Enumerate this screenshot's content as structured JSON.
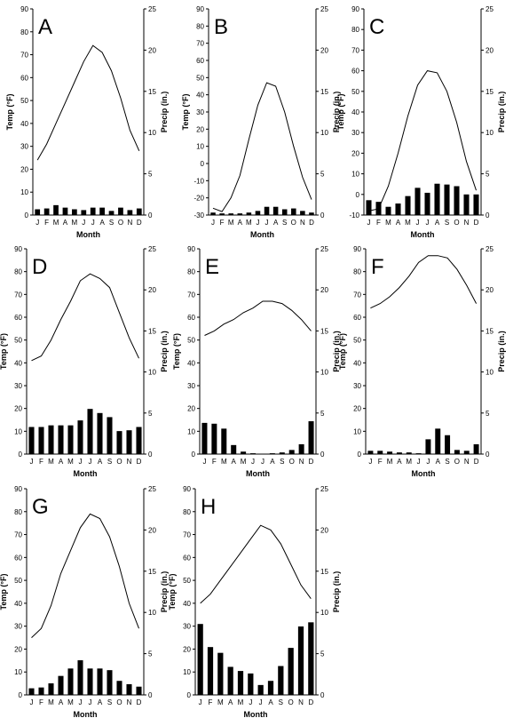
{
  "chart_data": [
    {
      "type": "bar",
      "panel_label": "A",
      "categories": [
        "J",
        "F",
        "M",
        "A",
        "M",
        "J",
        "J",
        "A",
        "S",
        "O",
        "N",
        "D"
      ],
      "series": [
        {
          "name": "Temp",
          "type": "line",
          "axis": "left",
          "values": [
            24,
            31,
            40,
            49,
            58,
            67,
            74,
            71,
            63,
            51,
            37,
            28
          ]
        },
        {
          "name": "Precip",
          "type": "bar",
          "axis": "right",
          "values": [
            0.7,
            0.8,
            1.2,
            0.9,
            0.7,
            0.6,
            0.9,
            0.9,
            0.5,
            0.9,
            0.6,
            0.8
          ]
        }
      ],
      "xlabel": "Month",
      "ylabel": "Temp (°F)",
      "y2label": "Precip (in.)",
      "ylim": [
        0,
        90
      ],
      "y2lim": [
        0,
        25
      ],
      "yticks": [
        0,
        10,
        20,
        30,
        40,
        50,
        60,
        70,
        80,
        90
      ],
      "y2ticks": [
        0,
        5,
        10,
        15,
        20,
        25
      ]
    },
    {
      "type": "bar",
      "panel_label": "B",
      "categories": [
        "J",
        "F",
        "M",
        "A",
        "M",
        "J",
        "J",
        "A",
        "S",
        "O",
        "N",
        "D"
      ],
      "series": [
        {
          "name": "Temp",
          "type": "line",
          "axis": "left",
          "values": [
            -26,
            -28,
            -20,
            -7,
            14,
            34,
            47,
            45,
            30,
            10,
            -8,
            -21
          ]
        },
        {
          "name": "Precip",
          "type": "bar",
          "axis": "right",
          "values": [
            0.3,
            0.2,
            0.2,
            0.2,
            0.3,
            0.5,
            1.0,
            1.0,
            0.7,
            0.8,
            0.5,
            0.3
          ]
        }
      ],
      "xlabel": "Month",
      "ylabel": "Temp (°F)",
      "y2label": "Precip (in.)",
      "ylim": [
        -30,
        90
      ],
      "y2lim": [
        0,
        25
      ],
      "yticks": [
        -30,
        -20,
        -10,
        0,
        10,
        20,
        30,
        40,
        50,
        60,
        70,
        80,
        90
      ],
      "y2ticks": [
        0,
        5,
        10,
        15,
        20,
        25
      ]
    },
    {
      "type": "bar",
      "panel_label": "C",
      "categories": [
        "J",
        "F",
        "M",
        "A",
        "M",
        "J",
        "J",
        "A",
        "S",
        "O",
        "N",
        "D"
      ],
      "series": [
        {
          "name": "Temp",
          "type": "line",
          "axis": "left",
          "values": [
            -8,
            -7,
            4,
            20,
            38,
            53,
            60,
            59,
            50,
            35,
            16,
            2
          ]
        },
        {
          "name": "Precip",
          "type": "bar",
          "axis": "right",
          "values": [
            1.8,
            1.6,
            1.0,
            1.4,
            2.3,
            3.3,
            2.7,
            3.8,
            3.7,
            3.5,
            2.5,
            2.5
          ]
        }
      ],
      "xlabel": "Month",
      "ylabel": "Temp (°F)",
      "y2label": "Precip (in.)",
      "ylim": [
        -10,
        90
      ],
      "y2lim": [
        0,
        25
      ],
      "yticks": [
        -10,
        0,
        10,
        20,
        30,
        40,
        50,
        60,
        70,
        80,
        90
      ],
      "y2ticks": [
        0,
        5,
        10,
        15,
        20,
        25
      ]
    },
    {
      "type": "bar",
      "panel_label": "D",
      "categories": [
        "J",
        "F",
        "M",
        "A",
        "M",
        "J",
        "J",
        "A",
        "S",
        "O",
        "N",
        "D"
      ],
      "series": [
        {
          "name": "Temp",
          "type": "line",
          "axis": "left",
          "values": [
            41,
            43,
            50,
            59,
            67,
            76,
            79,
            77,
            73,
            62,
            51,
            42
          ]
        },
        {
          "name": "Precip",
          "type": "bar",
          "axis": "right",
          "values": [
            3.3,
            3.3,
            3.5,
            3.5,
            3.5,
            4.1,
            5.5,
            5.0,
            4.5,
            2.8,
            2.9,
            3.3
          ]
        }
      ],
      "xlabel": "Month",
      "ylabel": "Temp (°F)",
      "y2label": "Precip (in.)",
      "ylim": [
        0,
        90
      ],
      "y2lim": [
        0,
        25
      ],
      "yticks": [
        0,
        10,
        20,
        30,
        40,
        50,
        60,
        70,
        80,
        90
      ],
      "y2ticks": [
        0,
        5,
        10,
        15,
        20,
        25
      ]
    },
    {
      "type": "bar",
      "panel_label": "E",
      "categories": [
        "J",
        "F",
        "M",
        "A",
        "M",
        "J",
        "J",
        "A",
        "S",
        "O",
        "N",
        "D"
      ],
      "series": [
        {
          "name": "Temp",
          "type": "line",
          "axis": "left",
          "values": [
            52,
            54,
            57,
            59,
            62,
            64,
            67,
            67,
            66,
            63,
            59,
            54
          ]
        },
        {
          "name": "Precip",
          "type": "bar",
          "axis": "right",
          "values": [
            3.8,
            3.7,
            3.1,
            1.1,
            0.3,
            0.1,
            0.0,
            0.1,
            0.2,
            0.5,
            1.2,
            4.0
          ]
        }
      ],
      "xlabel": "Month",
      "ylabel": "Temp (°F)",
      "y2label": "Precip (in.)",
      "ylim": [
        0,
        90
      ],
      "y2lim": [
        0,
        25
      ],
      "yticks": [
        0,
        10,
        20,
        30,
        40,
        50,
        60,
        70,
        80,
        90
      ],
      "y2ticks": [
        0,
        5,
        10,
        15,
        20,
        25
      ]
    },
    {
      "type": "bar",
      "panel_label": "F",
      "categories": [
        "J",
        "F",
        "M",
        "A",
        "M",
        "J",
        "J",
        "A",
        "S",
        "O",
        "N",
        "D"
      ],
      "series": [
        {
          "name": "Temp",
          "type": "line",
          "axis": "left",
          "values": [
            64,
            66,
            69,
            73,
            78,
            84,
            87,
            87,
            86,
            81,
            74,
            66
          ]
        },
        {
          "name": "Precip",
          "type": "bar",
          "axis": "right",
          "values": [
            0.4,
            0.4,
            0.3,
            0.2,
            0.2,
            0.1,
            1.8,
            3.1,
            2.3,
            0.5,
            0.4,
            1.2
          ]
        }
      ],
      "xlabel": "Month",
      "ylabel": "Temp (°F)",
      "y2label": "Precip (in.)",
      "ylim": [
        0,
        90
      ],
      "y2lim": [
        0,
        25
      ],
      "yticks": [
        0,
        10,
        20,
        30,
        40,
        50,
        60,
        70,
        80,
        90
      ],
      "y2ticks": [
        0,
        5,
        10,
        15,
        20,
        25
      ]
    },
    {
      "type": "bar",
      "panel_label": "G",
      "categories": [
        "J",
        "F",
        "M",
        "A",
        "M",
        "J",
        "J",
        "A",
        "S",
        "O",
        "N",
        "D"
      ],
      "series": [
        {
          "name": "Temp",
          "type": "line",
          "axis": "left",
          "values": [
            25,
            29,
            39,
            53,
            63,
            73,
            79,
            77,
            69,
            56,
            40,
            29
          ]
        },
        {
          "name": "Precip",
          "type": "bar",
          "axis": "right",
          "values": [
            0.8,
            0.9,
            1.4,
            2.3,
            3.2,
            4.2,
            3.2,
            3.2,
            3.0,
            1.7,
            1.3,
            1.0
          ]
        }
      ],
      "xlabel": "Month",
      "ylabel": "Temp (°F)",
      "y2label": "Precip (in.)",
      "ylim": [
        0,
        90
      ],
      "y2lim": [
        0,
        25
      ],
      "yticks": [
        0,
        10,
        20,
        30,
        40,
        50,
        60,
        70,
        80,
        90
      ],
      "y2ticks": [
        0,
        5,
        10,
        15,
        20,
        25
      ]
    },
    {
      "type": "bar",
      "panel_label": "H",
      "categories": [
        "J",
        "F",
        "M",
        "A",
        "M",
        "J",
        "J",
        "A",
        "S",
        "O",
        "N",
        "D"
      ],
      "series": [
        {
          "name": "Temp",
          "type": "line",
          "axis": "left",
          "values": [
            40,
            44,
            50,
            56,
            62,
            68,
            74,
            72,
            66,
            57,
            48,
            42
          ]
        },
        {
          "name": "Precip",
          "type": "bar",
          "axis": "right",
          "values": [
            8.6,
            5.8,
            5.1,
            3.4,
            2.9,
            2.6,
            1.2,
            1.7,
            3.5,
            5.7,
            8.3,
            8.8
          ]
        }
      ],
      "xlabel": "Month",
      "ylabel": "Temp (°F)",
      "y2label": "Precip (in.)",
      "ylim": [
        0,
        90
      ],
      "y2lim": [
        0,
        25
      ],
      "yticks": [
        0,
        10,
        20,
        30,
        40,
        50,
        60,
        70,
        80,
        90
      ],
      "y2ticks": [
        0,
        5,
        10,
        15,
        20,
        25
      ]
    }
  ]
}
